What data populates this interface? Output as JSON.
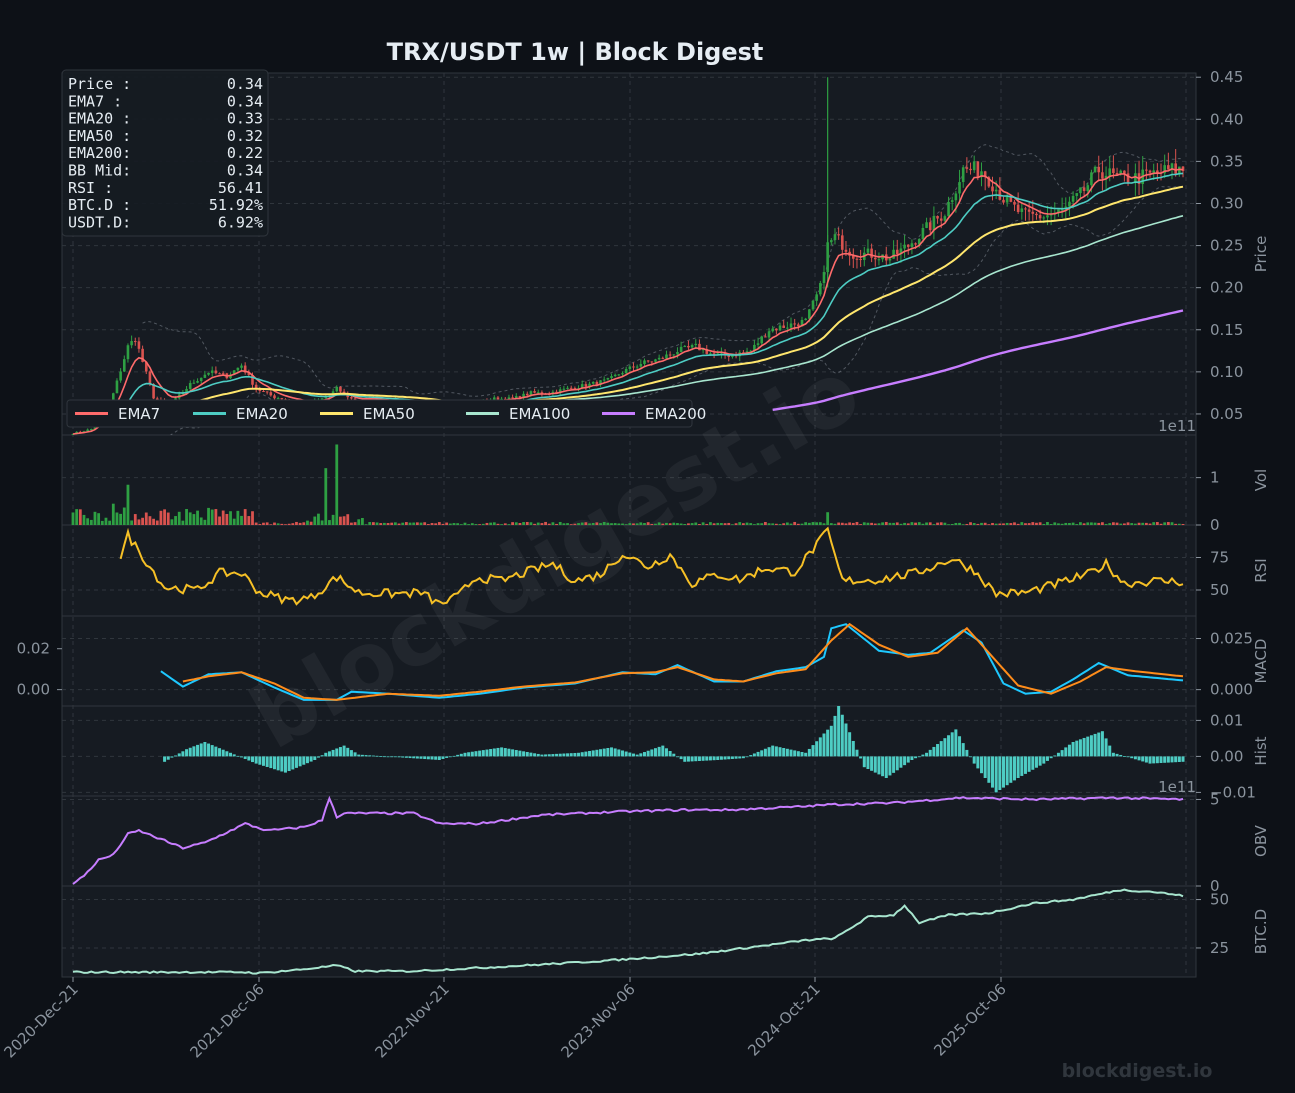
{
  "title": "TRX/USDT  1w  |  Block Digest",
  "watermark": "blockdigest.io",
  "footer_brand": "blockdigest.io",
  "info_box": [
    {
      "label": "Price :",
      "value": "0.34"
    },
    {
      "label": "EMA7  :",
      "value": "0.34"
    },
    {
      "label": "EMA20 :",
      "value": "0.33"
    },
    {
      "label": "EMA50 :",
      "value": "0.32"
    },
    {
      "label": "EMA200:",
      "value": "0.22"
    },
    {
      "label": "BB Mid:",
      "value": "0.34"
    },
    {
      "label": "RSI   :",
      "value": "56.41"
    },
    {
      "label": "BTC.D :",
      "value": "51.92%"
    },
    {
      "label": "USDT.D:",
      "value": "6.92%"
    }
  ],
  "colors": {
    "background": "#0d1117",
    "panel": "#161b22",
    "grid": "#30363d",
    "up": "#2ea043",
    "down": "#d9534f",
    "ema7": "#ff6b6b",
    "ema20": "#4ecdc4",
    "ema50": "#ffe66d",
    "ema100": "#a8e6cf",
    "ema200": "#c77dff",
    "rsi": "#f6c026",
    "macd": "#1ec8ff",
    "signal": "#ff8c1a",
    "hist": "#4ecdc4",
    "obv": "#c77dff",
    "btcd": "#a8e6cf",
    "text": "#8b949e"
  },
  "chart_data": {
    "type": "candlestick-multi-panel",
    "x_ticks": [
      "2020-Dec-21",
      "2021-Dec-06",
      "2022-Nov-21",
      "2023-Nov-06",
      "2024-Oct-21",
      "2025-Oct-06"
    ],
    "legend": [
      "EMA7",
      "EMA20",
      "EMA50",
      "EMA100",
      "EMA200"
    ],
    "legend_placement": "bottom-left of price panel",
    "price_points": [
      [
        "2020-12-21",
        0.027
      ],
      [
        "2021-01-25",
        0.032
      ],
      [
        "2021-03-01",
        0.06
      ],
      [
        "2021-04-05",
        0.13
      ],
      [
        "2021-04-19",
        0.14
      ],
      [
        "2021-05-24",
        0.07
      ],
      [
        "2021-06-21",
        0.058
      ],
      [
        "2021-08-02",
        0.085
      ],
      [
        "2021-09-06",
        0.1
      ],
      [
        "2021-10-11",
        0.095
      ],
      [
        "2021-11-08",
        0.108
      ],
      [
        "2021-12-06",
        0.08
      ],
      [
        "2022-01-10",
        0.07
      ],
      [
        "2022-02-14",
        0.066
      ],
      [
        "2022-03-21",
        0.062
      ],
      [
        "2022-04-25",
        0.072
      ],
      [
        "2022-05-09",
        0.08
      ],
      [
        "2022-06-13",
        0.065
      ],
      [
        "2022-07-18",
        0.068
      ],
      [
        "2022-08-22",
        0.066
      ],
      [
        "2022-10-03",
        0.063
      ],
      [
        "2022-11-07",
        0.055
      ],
      [
        "2022-11-21",
        0.05
      ],
      [
        "2022-12-26",
        0.053
      ],
      [
        "2023-01-30",
        0.064
      ],
      [
        "2023-03-06",
        0.068
      ],
      [
        "2023-04-10",
        0.068
      ],
      [
        "2023-05-15",
        0.075
      ],
      [
        "2023-06-19",
        0.075
      ],
      [
        "2023-07-24",
        0.08
      ],
      [
        "2023-09-04",
        0.085
      ],
      [
        "2023-10-09",
        0.09
      ],
      [
        "2023-11-06",
        0.1
      ],
      [
        "2023-12-11",
        0.11
      ],
      [
        "2024-01-15",
        0.115
      ],
      [
        "2024-02-19",
        0.125
      ],
      [
        "2024-03-25",
        0.13
      ],
      [
        "2024-04-29",
        0.12
      ],
      [
        "2024-06-03",
        0.12
      ],
      [
        "2024-07-08",
        0.125
      ],
      [
        "2024-08-12",
        0.15
      ],
      [
        "2024-09-16",
        0.155
      ],
      [
        "2024-10-21",
        0.16
      ],
      [
        "2024-11-18",
        0.2
      ],
      [
        "2024-12-02",
        0.25
      ],
      [
        "2024-12-16",
        0.26
      ],
      [
        "2025-01-20",
        0.24
      ],
      [
        "2025-02-24",
        0.24
      ],
      [
        "2025-03-31",
        0.235
      ],
      [
        "2025-05-05",
        0.25
      ],
      [
        "2025-06-09",
        0.27
      ],
      [
        "2025-07-14",
        0.29
      ],
      [
        "2025-08-18",
        0.34
      ],
      [
        "2025-09-22",
        0.34
      ],
      [
        "2025-10-06",
        0.33
      ],
      [
        "2025-11-10",
        0.3
      ],
      [
        "2025-12-15",
        0.285
      ],
      [
        "2026-01-19",
        0.285
      ],
      [
        "2026-02-23",
        0.29
      ],
      [
        "2026-03-30",
        0.31
      ],
      [
        "2026-05-04",
        0.34
      ],
      [
        "2026-06-08",
        0.33
      ],
      [
        "2026-07-13",
        0.33
      ],
      [
        "2026-08-17",
        0.335
      ],
      [
        "2026-09-21",
        0.34
      ],
      [
        "2026-10-12",
        0.34
      ]
    ],
    "ema200_start": "2024-08-19",
    "price_axis": {
      "label": "Price",
      "ticks": [
        "0.05",
        "0.10",
        "0.15",
        "0.20",
        "0.25",
        "0.30",
        "0.35",
        "0.40",
        "0.45"
      ],
      "range": [
        0.025,
        0.455
      ]
    },
    "volume_axis": {
      "label": "Vol",
      "ticks": [
        "0",
        "1"
      ],
      "exponent": "1e11",
      "range": [
        0,
        1.9
      ]
    },
    "volume_spikes": [
      [
        "2021-04-05",
        0.85
      ],
      [
        "2021-03-08",
        0.45
      ],
      [
        "2022-04-18",
        1.2
      ],
      [
        "2022-05-09",
        1.7
      ],
      [
        "2024-12-02",
        0.27
      ]
    ],
    "rsi_axis": {
      "label": "RSI",
      "ticks": [
        "50",
        "75"
      ],
      "range": [
        30,
        100
      ]
    },
    "rsi_points": [
      [
        "2021-03-22",
        75
      ],
      [
        "2021-04-05",
        92
      ],
      [
        "2021-05-10",
        72
      ],
      [
        "2021-06-14",
        52
      ],
      [
        "2021-08-16",
        50
      ],
      [
        "2021-09-27",
        63
      ],
      [
        "2021-11-08",
        63
      ],
      [
        "2021-12-13",
        48
      ],
      [
        "2022-02-07",
        42
      ],
      [
        "2022-03-21",
        44
      ],
      [
        "2022-05-09",
        60
      ],
      [
        "2022-06-20",
        48
      ],
      [
        "2022-08-29",
        47
      ],
      [
        "2022-10-17",
        48
      ],
      [
        "2022-11-21",
        39
      ],
      [
        "2022-12-26",
        45
      ],
      [
        "2023-01-30",
        60
      ],
      [
        "2023-03-20",
        57
      ],
      [
        "2023-05-01",
        63
      ],
      [
        "2023-06-26",
        70
      ],
      [
        "2023-08-07",
        57
      ],
      [
        "2023-09-25",
        62
      ],
      [
        "2023-11-06",
        78
      ],
      [
        "2023-12-25",
        68
      ],
      [
        "2024-02-05",
        77
      ],
      [
        "2024-03-18",
        55
      ],
      [
        "2024-05-06",
        62
      ],
      [
        "2024-06-17",
        58
      ],
      [
        "2024-08-05",
        67
      ],
      [
        "2024-09-30",
        64
      ],
      [
        "2024-12-02",
        95
      ],
      [
        "2024-12-30",
        57
      ],
      [
        "2025-03-10",
        58
      ],
      [
        "2025-05-19",
        63
      ],
      [
        "2025-07-28",
        74
      ],
      [
        "2025-09-08",
        65
      ],
      [
        "2025-10-20",
        47
      ],
      [
        "2025-12-15",
        48
      ],
      [
        "2026-02-16",
        55
      ],
      [
        "2026-04-13",
        62
      ],
      [
        "2026-05-18",
        70
      ],
      [
        "2026-06-22",
        55
      ],
      [
        "2026-08-17",
        57
      ],
      [
        "2026-10-12",
        56.41
      ]
    ],
    "macd_axis": {
      "label": "MACD",
      "ticks_right": [
        "0.000",
        "0.025"
      ],
      "ticks_left": [
        "0.00",
        "0.02"
      ],
      "range": [
        -0.008,
        0.036
      ]
    },
    "macd_points": [
      [
        "2021-06-07",
        0.009
      ],
      [
        "2021-07-19",
        0.0015
      ],
      [
        "2021-09-06",
        0.0075
      ],
      [
        "2021-11-08",
        0.0085
      ],
      [
        "2022-01-10",
        0.001
      ],
      [
        "2022-03-07",
        -0.005
      ],
      [
        "2022-05-09",
        -0.005
      ],
      [
        "2022-06-06",
        -0.001
      ],
      [
        "2022-08-15",
        -0.002
      ],
      [
        "2022-11-21",
        -0.004
      ],
      [
        "2023-02-06",
        -0.002
      ],
      [
        "2023-05-01",
        0.001
      ],
      [
        "2023-08-07",
        0.003
      ],
      [
        "2023-11-06",
        0.0085
      ],
      [
        "2024-01-08",
        0.0075
      ],
      [
        "2024-02-19",
        0.012
      ],
      [
        "2024-04-29",
        0.004
      ],
      [
        "2024-06-24",
        0.004
      ],
      [
        "2024-08-26",
        0.009
      ],
      [
        "2024-10-21",
        0.011
      ],
      [
        "2024-11-25",
        0.016
      ],
      [
        "2024-12-09",
        0.03
      ],
      [
        "2025-01-06",
        0.032
      ],
      [
        "2025-03-10",
        0.019
      ],
      [
        "2025-05-05",
        0.017
      ],
      [
        "2025-06-16",
        0.018
      ],
      [
        "2025-08-18",
        0.029
      ],
      [
        "2025-09-22",
        0.023
      ],
      [
        "2025-11-03",
        0.003
      ],
      [
        "2025-12-15",
        -0.002
      ],
      [
        "2026-02-02",
        -0.001
      ],
      [
        "2026-03-16",
        0.005
      ],
      [
        "2026-05-04",
        0.013
      ],
      [
        "2026-06-29",
        0.007
      ],
      [
        "2026-10-12",
        0.0045
      ]
    ],
    "signal_points": [
      [
        "2021-07-19",
        0.004
      ],
      [
        "2021-09-06",
        0.0065
      ],
      [
        "2021-11-08",
        0.0085
      ],
      [
        "2022-01-10",
        0.003
      ],
      [
        "2022-03-07",
        -0.004
      ],
      [
        "2022-05-09",
        -0.005
      ],
      [
        "2022-08-15",
        -0.002
      ],
      [
        "2022-11-21",
        -0.003
      ],
      [
        "2023-02-06",
        -0.001
      ],
      [
        "2023-05-01",
        0.0015
      ],
      [
        "2023-08-07",
        0.0035
      ],
      [
        "2023-11-06",
        0.008
      ],
      [
        "2024-01-08",
        0.0085
      ],
      [
        "2024-02-19",
        0.011
      ],
      [
        "2024-04-29",
        0.005
      ],
      [
        "2024-06-24",
        0.004
      ],
      [
        "2024-08-26",
        0.008
      ],
      [
        "2024-10-21",
        0.01
      ],
      [
        "2024-12-09",
        0.024
      ],
      [
        "2025-01-13",
        0.032
      ],
      [
        "2025-03-10",
        0.022
      ],
      [
        "2025-05-05",
        0.016
      ],
      [
        "2025-06-30",
        0.018
      ],
      [
        "2025-08-25",
        0.03
      ],
      [
        "2025-10-06",
        0.018
      ],
      [
        "2025-12-01",
        0.002
      ],
      [
        "2026-02-02",
        -0.002
      ],
      [
        "2026-03-30",
        0.004
      ],
      [
        "2026-05-18",
        0.011
      ],
      [
        "2026-07-13",
        0.009
      ],
      [
        "2026-10-12",
        0.0065
      ]
    ],
    "hist_axis": {
      "label": "Hist",
      "ticks": [
        "−0.01",
        "0.00",
        "0.01"
      ],
      "range": [
        -0.011,
        0.014
      ]
    },
    "hist_points": [
      [
        "2021-06-14",
        -0.0015
      ],
      [
        "2021-07-26",
        0.002
      ],
      [
        "2021-08-30",
        0.004
      ],
      [
        "2021-10-18",
        0.001
      ],
      [
        "2021-12-06",
        -0.002
      ],
      [
        "2022-01-31",
        -0.0045
      ],
      [
        "2022-03-28",
        -0.001
      ],
      [
        "2022-04-18",
        0.001
      ],
      [
        "2022-05-23",
        0.003
      ],
      [
        "2022-06-20",
        0.0005
      ],
      [
        "2022-11-21",
        -0.001
      ],
      [
        "2023-01-09",
        0.001
      ],
      [
        "2023-03-20",
        0.0025
      ],
      [
        "2023-06-05",
        0.0005
      ],
      [
        "2023-08-14",
        0.001
      ],
      [
        "2023-10-16",
        0.0025
      ],
      [
        "2023-12-04",
        0.0005
      ],
      [
        "2024-01-22",
        0.003
      ],
      [
        "2024-03-04",
        -0.0015
      ],
      [
        "2024-05-06",
        -0.001
      ],
      [
        "2024-06-24",
        -0.0005
      ],
      [
        "2024-08-19",
        0.003
      ],
      [
        "2024-10-21",
        0.001
      ],
      [
        "2024-12-09",
        0.0085
      ],
      [
        "2024-12-23",
        0.014
      ],
      [
        "2025-02-10",
        -0.003
      ],
      [
        "2025-03-24",
        -0.006
      ],
      [
        "2025-05-12",
        -0.001
      ],
      [
        "2025-06-09",
        0.001
      ],
      [
        "2025-08-04",
        0.0075
      ],
      [
        "2025-09-08",
        -0.002
      ],
      [
        "2025-10-20",
        -0.01
      ],
      [
        "2025-12-01",
        -0.006
      ],
      [
        "2026-01-19",
        -0.002
      ],
      [
        "2026-03-16",
        0.004
      ],
      [
        "2026-05-11",
        0.007
      ],
      [
        "2026-06-01",
        0.001
      ],
      [
        "2026-08-10",
        -0.002
      ],
      [
        "2026-10-12",
        -0.0015
      ]
    ],
    "obv_axis": {
      "label": "OBV",
      "ticks": [
        "0",
        "5"
      ],
      "exponent": "1e11",
      "range": [
        0,
        5.2
      ]
    },
    "obv_points": [
      [
        "2020-12-21",
        0.1
      ],
      [
        "2021-01-11",
        0.6
      ],
      [
        "2021-02-08",
        1.5
      ],
      [
        "2021-03-08",
        1.8
      ],
      [
        "2021-04-05",
        3.0
      ],
      [
        "2021-04-26",
        3.2
      ],
      [
        "2021-06-07",
        2.7
      ],
      [
        "2021-07-19",
        2.2
      ],
      [
        "2021-08-30",
        2.5
      ],
      [
        "2021-10-11",
        3.1
      ],
      [
        "2021-11-15",
        3.6
      ],
      [
        "2021-12-27",
        3.2
      ],
      [
        "2022-03-07",
        3.4
      ],
      [
        "2022-04-11",
        3.8
      ],
      [
        "2022-04-25",
        5.1
      ],
      [
        "2022-05-09",
        4.0
      ],
      [
        "2022-05-23",
        4.2
      ],
      [
        "2022-07-25",
        4.2
      ],
      [
        "2022-10-03",
        4.2
      ],
      [
        "2022-11-21",
        3.6
      ],
      [
        "2023-02-06",
        3.6
      ],
      [
        "2023-06-05",
        4.1
      ],
      [
        "2023-11-06",
        4.3
      ],
      [
        "2024-03-04",
        4.4
      ],
      [
        "2024-06-03",
        4.4
      ],
      [
        "2024-10-21",
        4.6
      ],
      [
        "2024-12-02",
        4.7
      ],
      [
        "2025-04-07",
        4.8
      ],
      [
        "2025-08-11",
        5.1
      ],
      [
        "2026-01-05",
        5.0
      ],
      [
        "2026-06-01",
        5.1
      ],
      [
        "2026-10-12",
        5.0
      ]
    ],
    "btcd_axis": {
      "label": "BTC.D",
      "ticks": [
        "25",
        "50"
      ],
      "range": [
        10,
        57
      ]
    },
    "btcd_points": [
      [
        "2020-12-21",
        12.5
      ],
      [
        "2021-11-08",
        12.5
      ],
      [
        "2021-12-13",
        12
      ],
      [
        "2022-03-07",
        14
      ],
      [
        "2022-05-09",
        16
      ],
      [
        "2022-06-13",
        13
      ],
      [
        "2022-09-26",
        13
      ],
      [
        "2023-02-27",
        15
      ],
      [
        "2023-07-10",
        17
      ],
      [
        "2023-11-06",
        19
      ],
      [
        "2024-04-01",
        22
      ],
      [
        "2024-08-26",
        27
      ],
      [
        "2024-10-21",
        29
      ],
      [
        "2024-12-16",
        30
      ],
      [
        "2025-02-17",
        41
      ],
      [
        "2025-04-07",
        42
      ],
      [
        "2025-04-28",
        47
      ],
      [
        "2025-05-26",
        38
      ],
      [
        "2025-07-21",
        42
      ],
      [
        "2025-10-06",
        43
      ],
      [
        "2025-12-29",
        48
      ],
      [
        "2026-03-16",
        50
      ],
      [
        "2026-06-15",
        55
      ],
      [
        "2026-08-17",
        54
      ],
      [
        "2026-10-12",
        51.92
      ]
    ]
  }
}
